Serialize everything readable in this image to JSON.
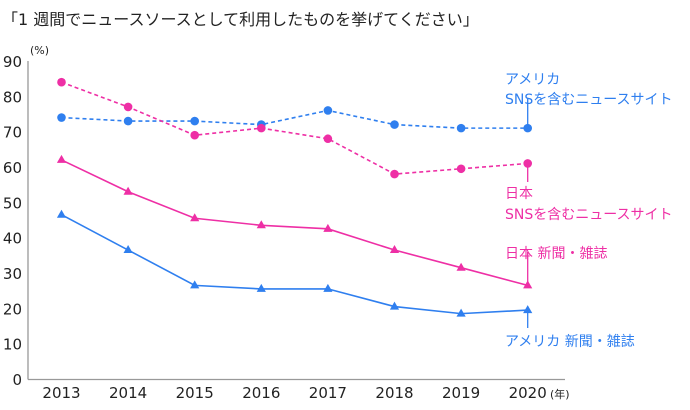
{
  "chart_data": {
    "type": "line",
    "title": "「1 週間でニュースソースとして利用したものを挙げてください」",
    "xlabel": "",
    "x_unit": "(年)",
    "ylabel": "",
    "y_unit": "(%)",
    "ylim": [
      0,
      90
    ],
    "yticks": [
      0,
      10,
      20,
      30,
      40,
      50,
      60,
      70,
      80,
      90
    ],
    "grid": false,
    "categories": [
      "2013",
      "2014",
      "2015",
      "2016",
      "2017",
      "2018",
      "2019",
      "2020"
    ],
    "series": [
      {
        "name": "アメリカ SNSを含むニュースサイト",
        "label_lines": [
          "アメリカ",
          "SNSを含むニュースサイト"
        ],
        "color": "#2f7fef",
        "style": "dashed",
        "marker": "circle",
        "values": [
          74,
          73,
          73,
          72,
          76,
          72,
          71,
          71
        ]
      },
      {
        "name": "日本 SNSを含むニュースサイト",
        "label_lines": [
          "日本",
          "SNSを含むニュースサイト"
        ],
        "color": "#ee2fa5",
        "style": "dashed",
        "marker": "circle",
        "values": [
          84,
          77,
          69,
          71,
          68,
          58,
          59.5,
          61
        ]
      },
      {
        "name": "日本 新聞・雑誌",
        "label_lines": [
          "日本  新聞・雑誌"
        ],
        "color": "#ee2fa5",
        "style": "solid",
        "marker": "triangle",
        "values": [
          62,
          53,
          45.5,
          43.5,
          42.5,
          36.5,
          31.5,
          26.5
        ]
      },
      {
        "name": "アメリカ 新聞・雑誌",
        "label_lines": [
          "アメリカ  新聞・雑誌"
        ],
        "color": "#2f7fef",
        "style": "solid",
        "marker": "triangle",
        "values": [
          46.5,
          36.5,
          26.5,
          25.5,
          25.5,
          20.5,
          18.5,
          19.5
        ]
      }
    ]
  }
}
